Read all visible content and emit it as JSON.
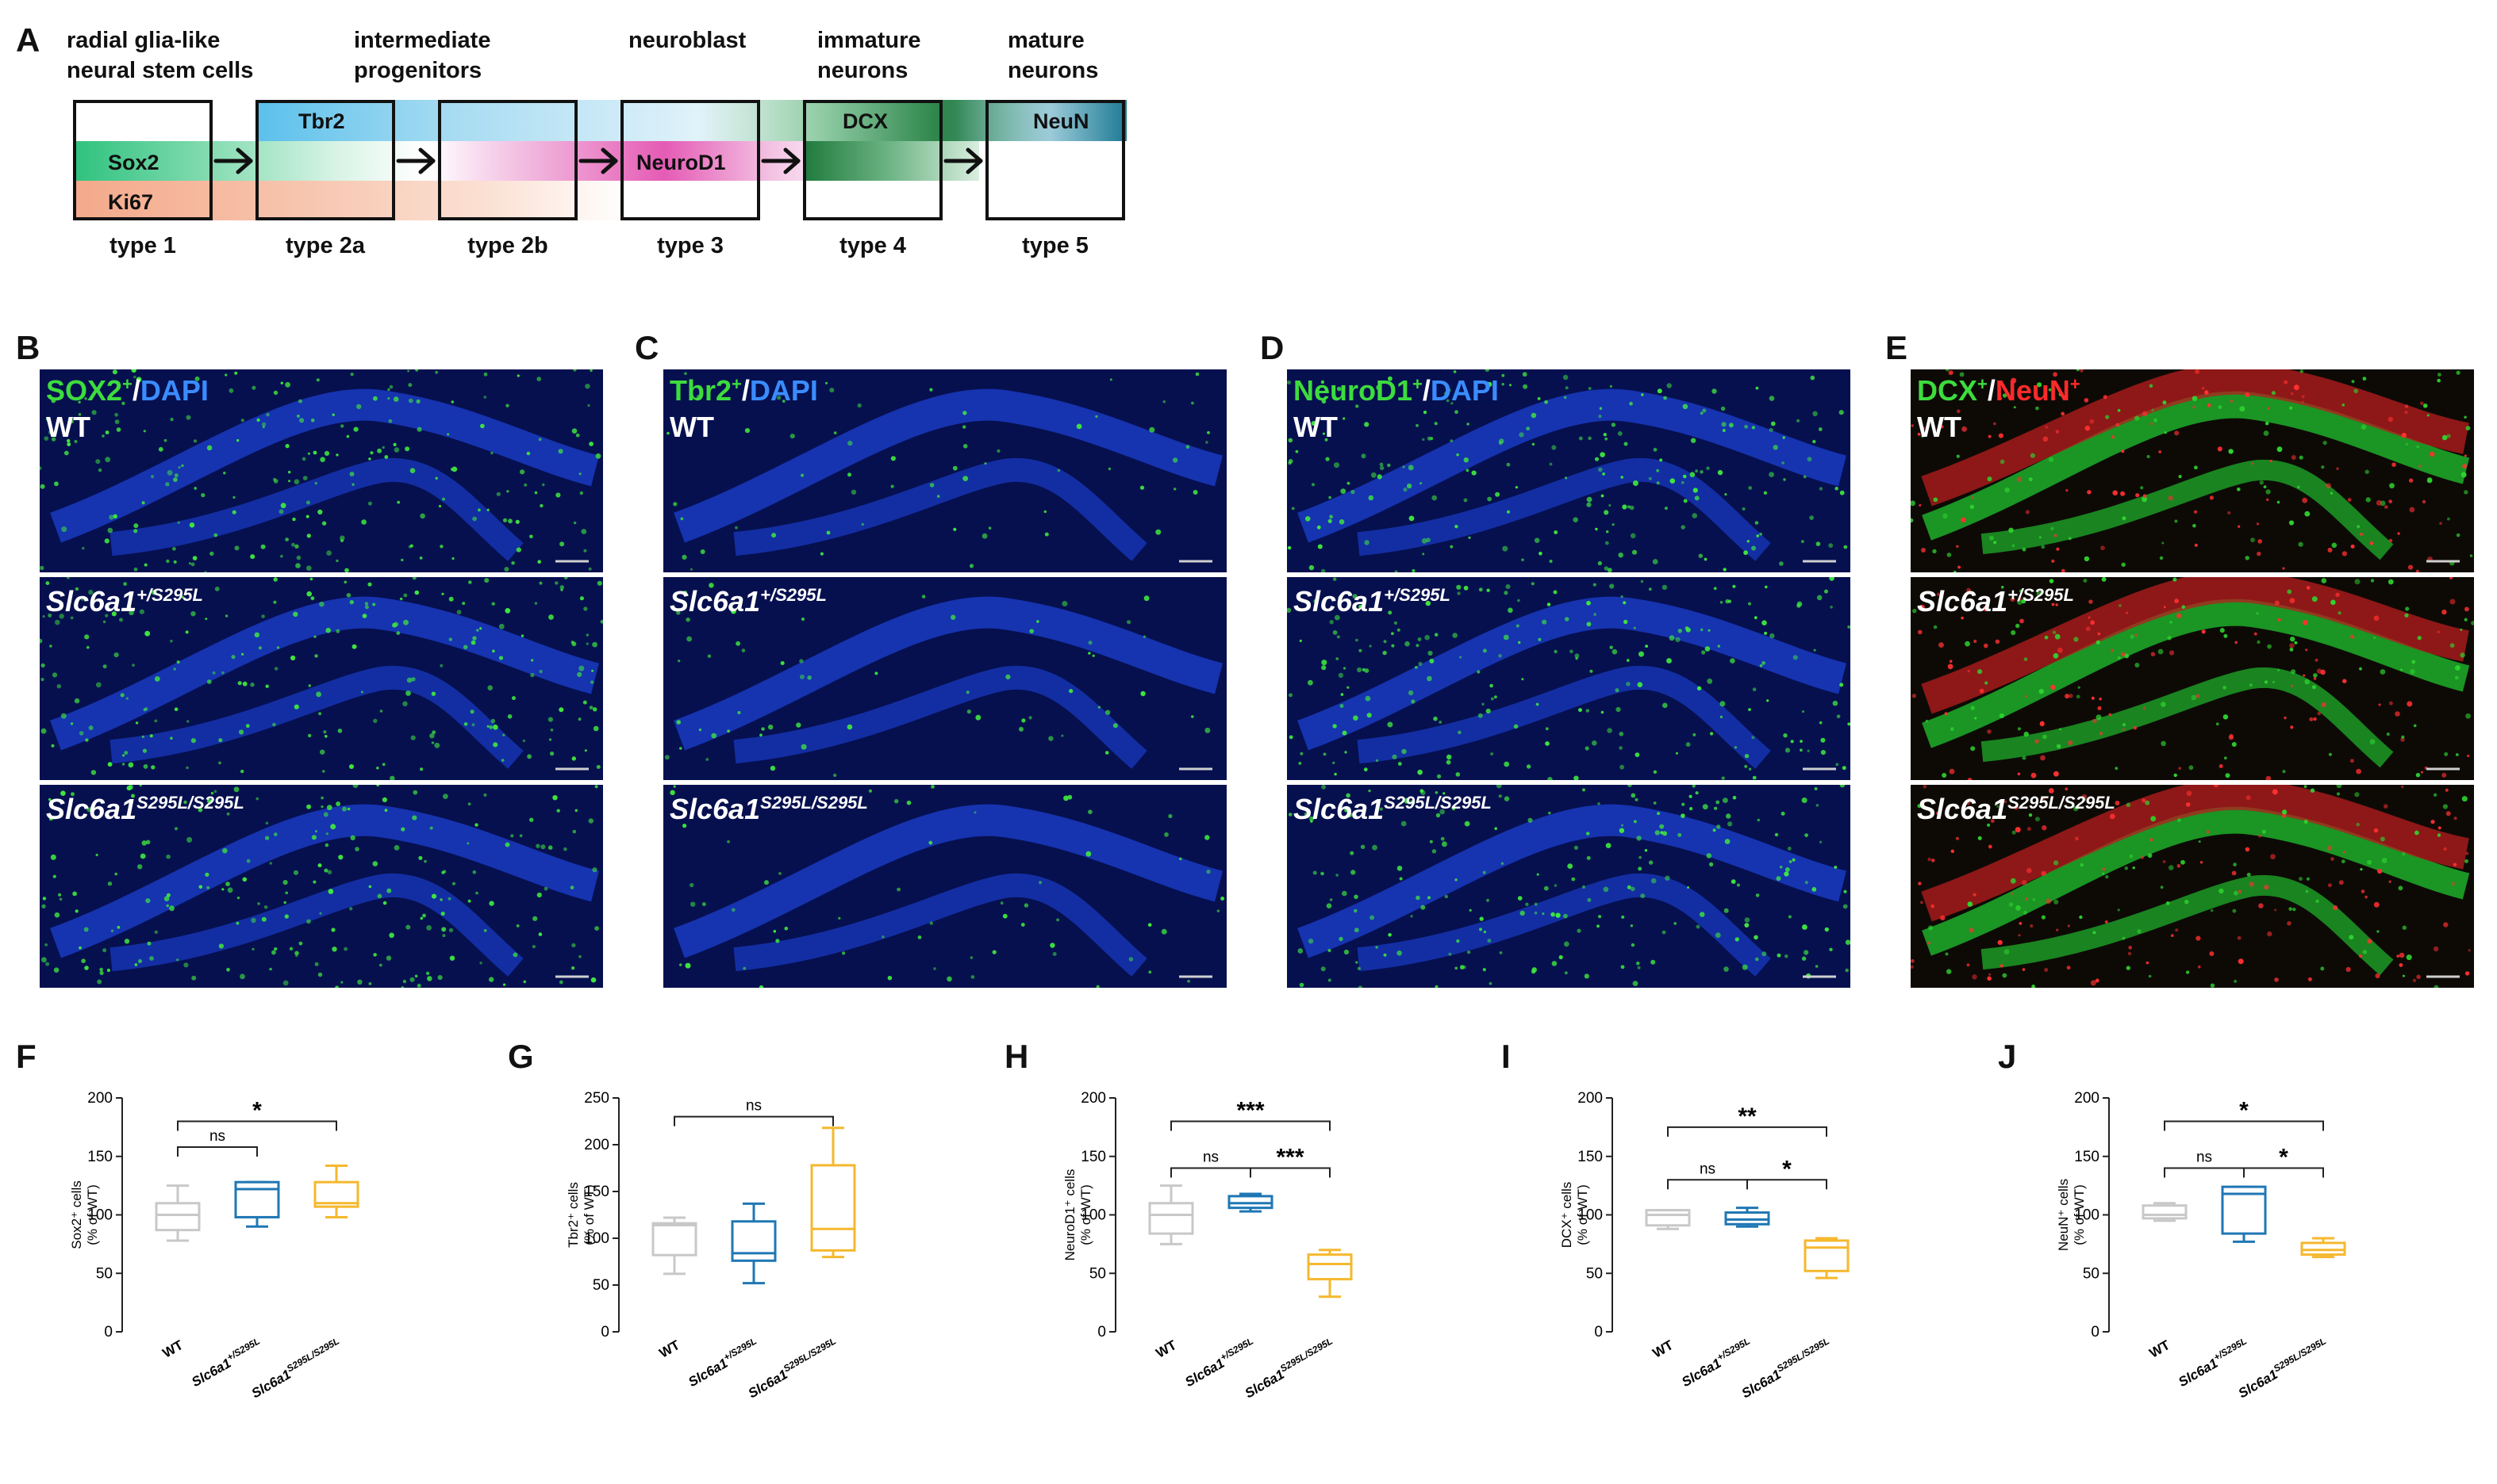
{
  "panel_a": {
    "label": "A",
    "stages": [
      {
        "title": "radial glia-like neural stem cells",
        "title_lines": [
          "radial glia-like",
          "neural stem cells"
        ],
        "type": "type 1"
      },
      {
        "title": "intermediate progenitors",
        "title_lines": [
          "intermediate",
          "progenitors"
        ],
        "type": "type 2a"
      },
      {
        "title": "",
        "title_lines": [
          "",
          ""
        ],
        "type": "type 2b"
      },
      {
        "title": "neuroblast",
        "title_lines": [
          "",
          "neuroblast"
        ],
        "type": "type 3"
      },
      {
        "title": "immature neurons",
        "title_lines": [
          "immature",
          "neurons"
        ],
        "type": "type 4"
      },
      {
        "title": "mature neurons",
        "title_lines": [
          "mature",
          "neurons"
        ],
        "type": "type 5"
      }
    ],
    "markers": {
      "sox2": "Sox2",
      "ki67": "Ki67",
      "tbr2": "Tbr2",
      "neurod1": "NeuroD1",
      "dcx": "DCX",
      "neun": "NeuN"
    },
    "colors": {
      "sox2": "#2ec27e",
      "ki67": "#f4a98a",
      "tbr2": "#5bc0eb",
      "neurod1": "#e55bb5",
      "dcx": "#1e7a3c",
      "neun": "#1d7a94"
    }
  },
  "micrographs": {
    "genotypes": {
      "wt": "WT",
      "het_base": "Slc6a1",
      "het_sup": "+/S295L",
      "hom_base": "Slc6a1",
      "hom_sup": "S295L/S295L"
    },
    "panels": [
      {
        "label": "B",
        "stain_a": "SOX2",
        "stain_a_sup": "+",
        "slash": "/",
        "stain_b": "DAPI",
        "stain_b_sup": "",
        "color_a": "#3ddc3d",
        "color_b": "#3a8cff"
      },
      {
        "label": "C",
        "stain_a": "Tbr2",
        "stain_a_sup": "+",
        "slash": "/",
        "stain_b": "DAPI",
        "stain_b_sup": "",
        "color_a": "#3ddc3d",
        "color_b": "#3a8cff"
      },
      {
        "label": "D",
        "stain_a": "NeuroD1",
        "stain_a_sup": "+",
        "slash": "/",
        "stain_b": "DAPI",
        "stain_b_sup": "",
        "color_a": "#3ddc3d",
        "color_b": "#3a8cff"
      },
      {
        "label": "E",
        "stain_a": "DCX",
        "stain_a_sup": "+",
        "slash": "/",
        "stain_b": "NeuN",
        "stain_b_sup": "+",
        "color_a": "#3ddc3d",
        "color_b": "#ff2a2a"
      }
    ]
  },
  "chart_data": [
    {
      "type": "box",
      "panel": "F",
      "ylabel_lines": [
        "Sox2⁺ cells",
        "(% of WT)"
      ],
      "ylim": [
        0,
        200
      ],
      "yticks": [
        0,
        50,
        100,
        150,
        200
      ],
      "categories": [
        "WT",
        "Slc6a1+/S295L",
        "Slc6a1S295L/S295L"
      ],
      "boxes": [
        {
          "min": 78,
          "q1": 87,
          "median": 100,
          "q3": 110,
          "max": 125,
          "color": "#c8c8c8"
        },
        {
          "min": 90,
          "q1": 98,
          "median": 122,
          "q3": 128,
          "max": 128,
          "color": "#1f77b4"
        },
        {
          "min": 98,
          "q1": 107,
          "median": 110,
          "q3": 128,
          "max": 142,
          "color": "#f5b82e"
        }
      ],
      "comparisons": [
        {
          "from": 0,
          "to": 1,
          "y": 158,
          "label": "ns"
        },
        {
          "from": 0,
          "to": 2,
          "y": 180,
          "label": "*"
        }
      ]
    },
    {
      "type": "box",
      "panel": "G",
      "ylabel_lines": [
        "Tbr2⁺ cells",
        "(% of WT)"
      ],
      "ylim": [
        0,
        250
      ],
      "yticks": [
        0,
        50,
        100,
        150,
        200,
        250
      ],
      "categories": [
        "WT",
        "Slc6a1+/S295L",
        "Slc6a1S295L/S295L"
      ],
      "boxes": [
        {
          "min": 62,
          "q1": 82,
          "median": 114,
          "q3": 116,
          "max": 122,
          "color": "#c8c8c8"
        },
        {
          "min": 52,
          "q1": 76,
          "median": 84,
          "q3": 118,
          "max": 137,
          "color": "#1f77b4"
        },
        {
          "min": 80,
          "q1": 87,
          "median": 110,
          "q3": 178,
          "max": 218,
          "color": "#f5b82e"
        }
      ],
      "comparisons": [
        {
          "from": 0,
          "to": 2,
          "y": 230,
          "label": "ns"
        }
      ]
    },
    {
      "type": "box",
      "panel": "H",
      "ylabel_lines": [
        "NeuroD1⁺ cells",
        "(% of WT)"
      ],
      "ylim": [
        0,
        200
      ],
      "yticks": [
        0,
        50,
        100,
        150,
        200
      ],
      "categories": [
        "WT",
        "Slc6a1+/S295L",
        "Slc6a1S295L/S295L"
      ],
      "boxes": [
        {
          "min": 75,
          "q1": 84,
          "median": 100,
          "q3": 110,
          "max": 125,
          "color": "#c8c8c8"
        },
        {
          "min": 103,
          "q1": 106,
          "median": 110,
          "q3": 116,
          "max": 118,
          "color": "#1f77b4"
        },
        {
          "min": 30,
          "q1": 45,
          "median": 58,
          "q3": 66,
          "max": 70,
          "color": "#f5b82e"
        }
      ],
      "comparisons": [
        {
          "from": 0,
          "to": 1,
          "y": 140,
          "label": "ns"
        },
        {
          "from": 1,
          "to": 2,
          "y": 140,
          "label": "***"
        },
        {
          "from": 0,
          "to": 2,
          "y": 180,
          "label": "***"
        }
      ]
    },
    {
      "type": "box",
      "panel": "I",
      "ylabel_lines": [
        "DCX⁺ cells",
        "(% of WT)"
      ],
      "ylim": [
        0,
        200
      ],
      "yticks": [
        0,
        50,
        100,
        150,
        200
      ],
      "categories": [
        "WT",
        "Slc6a1+/S295L",
        "Slc6a1S295L/S295L"
      ],
      "boxes": [
        {
          "min": 88,
          "q1": 91,
          "median": 100,
          "q3": 104,
          "max": 104,
          "color": "#c8c8c8"
        },
        {
          "min": 90,
          "q1": 92,
          "median": 96,
          "q3": 102,
          "max": 106,
          "color": "#1f77b4"
        },
        {
          "min": 46,
          "q1": 52,
          "median": 72,
          "q3": 78,
          "max": 80,
          "color": "#f5b82e"
        }
      ],
      "comparisons": [
        {
          "from": 0,
          "to": 1,
          "y": 130,
          "label": "ns"
        },
        {
          "from": 1,
          "to": 2,
          "y": 130,
          "label": "*"
        },
        {
          "from": 0,
          "to": 2,
          "y": 175,
          "label": "**"
        }
      ]
    },
    {
      "type": "box",
      "panel": "J",
      "ylabel_lines": [
        "NeuN⁺ cells",
        "(% of WT)"
      ],
      "ylim": [
        0,
        200
      ],
      "yticks": [
        0,
        50,
        100,
        150,
        200
      ],
      "categories": [
        "WT",
        "Slc6a1+/S295L",
        "Slc6a1S295L/S295L"
      ],
      "boxes": [
        {
          "min": 95,
          "q1": 97,
          "median": 100,
          "q3": 108,
          "max": 110,
          "color": "#c8c8c8"
        },
        {
          "min": 77,
          "q1": 84,
          "median": 118,
          "q3": 124,
          "max": 124,
          "color": "#1f77b4"
        },
        {
          "min": 64,
          "q1": 66,
          "median": 70,
          "q3": 76,
          "max": 80,
          "color": "#f5b82e"
        }
      ],
      "comparisons": [
        {
          "from": 0,
          "to": 1,
          "y": 140,
          "label": "ns"
        },
        {
          "from": 1,
          "to": 2,
          "y": 140,
          "label": "*"
        },
        {
          "from": 0,
          "to": 2,
          "y": 180,
          "label": "*"
        }
      ]
    }
  ]
}
